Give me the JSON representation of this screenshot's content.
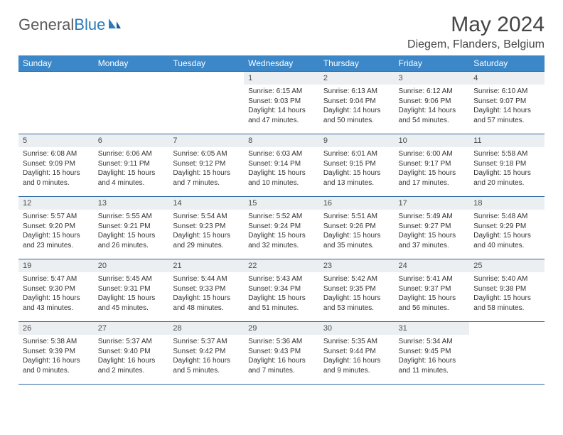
{
  "logo": {
    "text1": "General",
    "text2": "Blue"
  },
  "title": "May 2024",
  "location": "Diegem, Flanders, Belgium",
  "dayNames": [
    "Sunday",
    "Monday",
    "Tuesday",
    "Wednesday",
    "Thursday",
    "Friday",
    "Saturday"
  ],
  "colors": {
    "headerBg": "#3b87c8",
    "border": "#2d6aa3",
    "dayBg": "#eceff2",
    "text": "#333333"
  },
  "weeks": [
    [
      null,
      null,
      null,
      {
        "n": "1",
        "sr": "6:15 AM",
        "ss": "9:03 PM",
        "dl": "14 hours and 47 minutes."
      },
      {
        "n": "2",
        "sr": "6:13 AM",
        "ss": "9:04 PM",
        "dl": "14 hours and 50 minutes."
      },
      {
        "n": "3",
        "sr": "6:12 AM",
        "ss": "9:06 PM",
        "dl": "14 hours and 54 minutes."
      },
      {
        "n": "4",
        "sr": "6:10 AM",
        "ss": "9:07 PM",
        "dl": "14 hours and 57 minutes."
      }
    ],
    [
      {
        "n": "5",
        "sr": "6:08 AM",
        "ss": "9:09 PM",
        "dl": "15 hours and 0 minutes."
      },
      {
        "n": "6",
        "sr": "6:06 AM",
        "ss": "9:11 PM",
        "dl": "15 hours and 4 minutes."
      },
      {
        "n": "7",
        "sr": "6:05 AM",
        "ss": "9:12 PM",
        "dl": "15 hours and 7 minutes."
      },
      {
        "n": "8",
        "sr": "6:03 AM",
        "ss": "9:14 PM",
        "dl": "15 hours and 10 minutes."
      },
      {
        "n": "9",
        "sr": "6:01 AM",
        "ss": "9:15 PM",
        "dl": "15 hours and 13 minutes."
      },
      {
        "n": "10",
        "sr": "6:00 AM",
        "ss": "9:17 PM",
        "dl": "15 hours and 17 minutes."
      },
      {
        "n": "11",
        "sr": "5:58 AM",
        "ss": "9:18 PM",
        "dl": "15 hours and 20 minutes."
      }
    ],
    [
      {
        "n": "12",
        "sr": "5:57 AM",
        "ss": "9:20 PM",
        "dl": "15 hours and 23 minutes."
      },
      {
        "n": "13",
        "sr": "5:55 AM",
        "ss": "9:21 PM",
        "dl": "15 hours and 26 minutes."
      },
      {
        "n": "14",
        "sr": "5:54 AM",
        "ss": "9:23 PM",
        "dl": "15 hours and 29 minutes."
      },
      {
        "n": "15",
        "sr": "5:52 AM",
        "ss": "9:24 PM",
        "dl": "15 hours and 32 minutes."
      },
      {
        "n": "16",
        "sr": "5:51 AM",
        "ss": "9:26 PM",
        "dl": "15 hours and 35 minutes."
      },
      {
        "n": "17",
        "sr": "5:49 AM",
        "ss": "9:27 PM",
        "dl": "15 hours and 37 minutes."
      },
      {
        "n": "18",
        "sr": "5:48 AM",
        "ss": "9:29 PM",
        "dl": "15 hours and 40 minutes."
      }
    ],
    [
      {
        "n": "19",
        "sr": "5:47 AM",
        "ss": "9:30 PM",
        "dl": "15 hours and 43 minutes."
      },
      {
        "n": "20",
        "sr": "5:45 AM",
        "ss": "9:31 PM",
        "dl": "15 hours and 45 minutes."
      },
      {
        "n": "21",
        "sr": "5:44 AM",
        "ss": "9:33 PM",
        "dl": "15 hours and 48 minutes."
      },
      {
        "n": "22",
        "sr": "5:43 AM",
        "ss": "9:34 PM",
        "dl": "15 hours and 51 minutes."
      },
      {
        "n": "23",
        "sr": "5:42 AM",
        "ss": "9:35 PM",
        "dl": "15 hours and 53 minutes."
      },
      {
        "n": "24",
        "sr": "5:41 AM",
        "ss": "9:37 PM",
        "dl": "15 hours and 56 minutes."
      },
      {
        "n": "25",
        "sr": "5:40 AM",
        "ss": "9:38 PM",
        "dl": "15 hours and 58 minutes."
      }
    ],
    [
      {
        "n": "26",
        "sr": "5:38 AM",
        "ss": "9:39 PM",
        "dl": "16 hours and 0 minutes."
      },
      {
        "n": "27",
        "sr": "5:37 AM",
        "ss": "9:40 PM",
        "dl": "16 hours and 2 minutes."
      },
      {
        "n": "28",
        "sr": "5:37 AM",
        "ss": "9:42 PM",
        "dl": "16 hours and 5 minutes."
      },
      {
        "n": "29",
        "sr": "5:36 AM",
        "ss": "9:43 PM",
        "dl": "16 hours and 7 minutes."
      },
      {
        "n": "30",
        "sr": "5:35 AM",
        "ss": "9:44 PM",
        "dl": "16 hours and 9 minutes."
      },
      {
        "n": "31",
        "sr": "5:34 AM",
        "ss": "9:45 PM",
        "dl": "16 hours and 11 minutes."
      },
      null
    ]
  ],
  "labels": {
    "sunrise": "Sunrise:",
    "sunset": "Sunset:",
    "daylight": "Daylight:"
  }
}
